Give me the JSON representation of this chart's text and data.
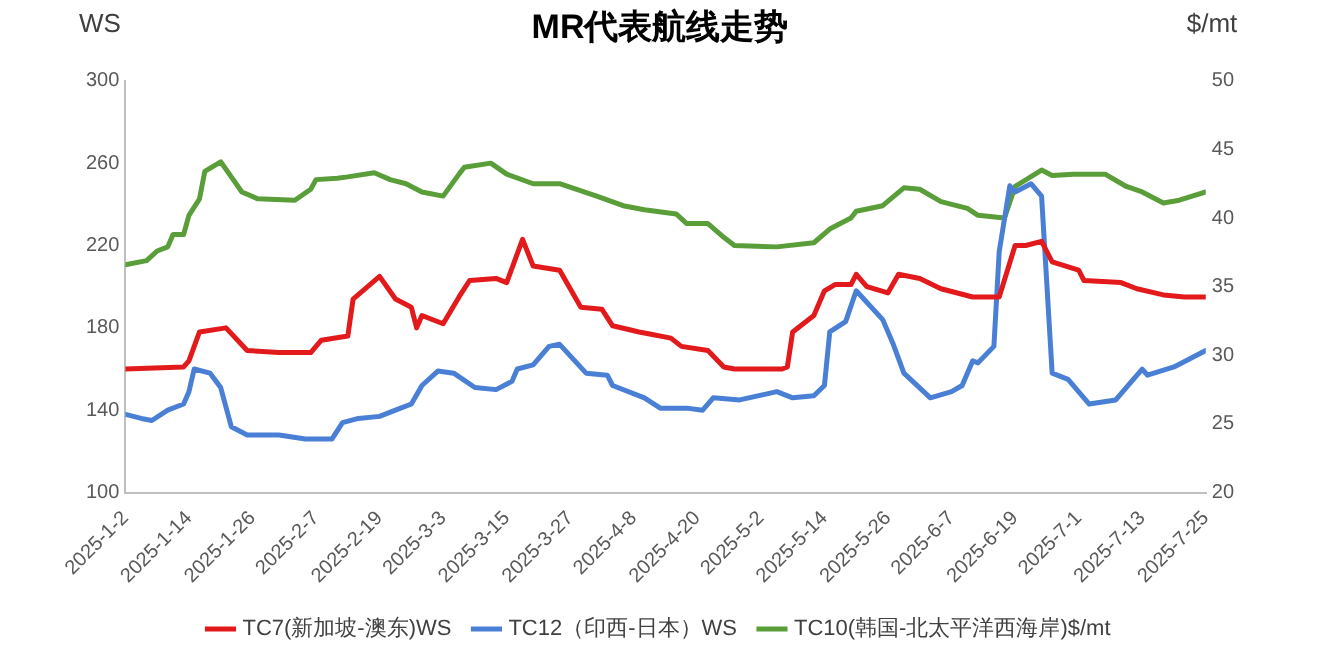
{
  "chart_data": {
    "type": "line",
    "title": "MR代表航线走势",
    "ylabel": "WS",
    "y2label": "$/mt",
    "xlim": [
      "2025-01-02",
      "2025-07-25"
    ],
    "xticks": [
      {
        "value": "2025-01-02",
        "label": "2025-1-2"
      },
      {
        "value": "2025-01-14",
        "label": "2025-1-14"
      },
      {
        "value": "2025-01-26",
        "label": "2025-1-26"
      },
      {
        "value": "2025-02-07",
        "label": "2025-2-7"
      },
      {
        "value": "2025-02-19",
        "label": "2025-2-19"
      },
      {
        "value": "2025-03-03",
        "label": "2025-3-3"
      },
      {
        "value": "2025-03-15",
        "label": "2025-3-15"
      },
      {
        "value": "2025-03-27",
        "label": "2025-3-27"
      },
      {
        "value": "2025-04-08",
        "label": "2025-4-8"
      },
      {
        "value": "2025-04-20",
        "label": "2025-4-20"
      },
      {
        "value": "2025-05-02",
        "label": "2025-5-2"
      },
      {
        "value": "2025-05-14",
        "label": "2025-5-14"
      },
      {
        "value": "2025-05-26",
        "label": "2025-5-26"
      },
      {
        "value": "2025-06-07",
        "label": "2025-6-7"
      },
      {
        "value": "2025-06-19",
        "label": "2025-6-19"
      },
      {
        "value": "2025-07-01",
        "label": "2025-7-1"
      },
      {
        "value": "2025-07-13",
        "label": "2025-7-13"
      },
      {
        "value": "2025-07-25",
        "label": "2025-7-25"
      }
    ],
    "ylim": [
      100,
      300
    ],
    "yticks": [
      100,
      140,
      180,
      220,
      260,
      300
    ],
    "y2lim": [
      20,
      50
    ],
    "y2ticks": [
      20,
      25,
      30,
      35,
      40,
      45,
      50
    ],
    "grid": false,
    "legend": "bottom",
    "marker": "none",
    "line_style": "solid",
    "series": [
      {
        "name": "TC7(新加坡-澳东)WS",
        "color": "#e31a1c",
        "x": [
          "2025-01-02",
          "2025-01-13",
          "2025-01-14",
          "2025-01-16",
          "2025-01-21",
          "2025-01-25",
          "2025-01-31",
          "2025-02-06",
          "2025-02-08",
          "2025-02-13",
          "2025-02-14",
          "2025-02-19",
          "2025-02-22",
          "2025-02-25",
          "2025-02-26",
          "2025-02-27",
          "2025-03-03",
          "2025-03-06",
          "2025-03-08",
          "2025-03-13",
          "2025-03-15",
          "2025-03-18",
          "2025-03-20",
          "2025-03-25",
          "2025-03-29",
          "2025-04-02",
          "2025-04-04",
          "2025-04-09",
          "2025-04-11",
          "2025-04-15",
          "2025-04-17",
          "2025-04-22",
          "2025-04-25",
          "2025-04-27",
          "2025-05-06",
          "2025-05-07",
          "2025-05-08",
          "2025-05-12",
          "2025-05-14",
          "2025-05-16",
          "2025-05-19",
          "2025-05-20",
          "2025-05-22",
          "2025-05-26",
          "2025-05-28",
          "2025-06-01",
          "2025-06-05",
          "2025-06-11",
          "2025-06-16",
          "2025-06-19",
          "2025-06-21",
          "2025-06-24",
          "2025-06-26",
          "2025-07-01",
          "2025-07-02",
          "2025-07-09",
          "2025-07-12",
          "2025-07-17",
          "2025-07-21",
          "2025-07-25"
        ],
        "values": [
          160,
          161,
          164,
          178,
          180,
          169,
          168,
          168,
          174,
          176,
          194,
          205,
          194,
          190,
          180,
          186,
          182,
          195,
          203,
          204,
          202,
          223,
          210,
          208,
          190,
          189,
          181,
          178,
          177,
          175,
          171,
          169,
          161,
          160,
          160,
          161,
          178,
          186,
          198,
          201,
          201,
          206,
          200,
          197,
          206,
          204,
          199,
          195,
          195,
          220,
          220,
          222,
          212,
          208,
          203,
          202,
          199,
          196,
          195,
          195
        ]
      },
      {
        "name": "TC12（印西-日本）WS",
        "color": "#4a7fd6",
        "x": [
          "2025-01-02",
          "2025-01-05",
          "2025-01-07",
          "2025-01-10",
          "2025-01-13",
          "2025-01-14",
          "2025-01-15",
          "2025-01-18",
          "2025-01-20",
          "2025-01-22",
          "2025-01-25",
          "2025-01-31",
          "2025-02-05",
          "2025-02-10",
          "2025-02-12",
          "2025-02-15",
          "2025-02-19",
          "2025-02-22",
          "2025-02-25",
          "2025-02-27",
          "2025-03-02",
          "2025-03-05",
          "2025-03-09",
          "2025-03-13",
          "2025-03-16",
          "2025-03-17",
          "2025-03-20",
          "2025-03-23",
          "2025-03-25",
          "2025-03-30",
          "2025-04-03",
          "2025-04-04",
          "2025-04-10",
          "2025-04-13",
          "2025-04-18",
          "2025-04-21",
          "2025-04-23",
          "2025-04-28",
          "2025-05-05",
          "2025-05-08",
          "2025-05-12",
          "2025-05-14",
          "2025-05-15",
          "2025-05-18",
          "2025-05-20",
          "2025-05-25",
          "2025-05-27",
          "2025-05-29",
          "2025-06-03",
          "2025-06-07",
          "2025-06-09",
          "2025-06-11",
          "2025-06-12",
          "2025-06-15",
          "2025-06-16",
          "2025-06-18",
          "2025-06-19",
          "2025-06-22",
          "2025-06-24",
          "2025-06-26",
          "2025-06-29",
          "2025-07-03",
          "2025-07-08",
          "2025-07-11",
          "2025-07-13",
          "2025-07-14",
          "2025-07-19",
          "2025-07-25"
        ],
        "values": [
          138,
          136,
          135,
          140,
          143,
          149,
          160,
          158,
          151,
          132,
          128,
          128,
          126,
          126,
          134,
          136,
          137,
          140,
          143,
          152,
          159,
          158,
          151,
          150,
          154,
          160,
          162,
          171,
          172,
          158,
          157,
          152,
          146,
          141,
          141,
          140,
          146,
          145,
          149,
          146,
          147,
          152,
          178,
          183,
          198,
          184,
          172,
          158,
          146,
          149,
          152,
          164,
          163,
          171,
          217,
          249,
          246,
          250,
          244,
          158,
          155,
          143,
          145,
          154,
          160,
          157,
          161,
          169
        ]
      },
      {
        "name": "TC10(韩国-北太平洋西海岸)$/mt",
        "color": "#5a9e3a",
        "axis": "y2",
        "x": [
          "2025-01-02",
          "2025-01-06",
          "2025-01-08",
          "2025-01-10",
          "2025-01-11",
          "2025-01-13",
          "2025-01-14",
          "2025-01-16",
          "2025-01-17",
          "2025-01-20",
          "2025-01-22",
          "2025-01-24",
          "2025-01-27",
          "2025-02-03",
          "2025-02-06",
          "2025-02-07",
          "2025-02-11",
          "2025-02-13",
          "2025-02-18",
          "2025-02-21",
          "2025-02-24",
          "2025-02-27",
          "2025-03-03",
          "2025-03-06",
          "2025-03-07",
          "2025-03-12",
          "2025-03-15",
          "2025-03-20",
          "2025-03-25",
          "2025-04-01",
          "2025-04-06",
          "2025-04-10",
          "2025-04-16",
          "2025-04-18",
          "2025-04-22",
          "2025-04-25",
          "2025-04-27",
          "2025-05-05",
          "2025-05-12",
          "2025-05-15",
          "2025-05-19",
          "2025-05-20",
          "2025-05-25",
          "2025-05-29",
          "2025-06-01",
          "2025-06-05",
          "2025-06-10",
          "2025-06-12",
          "2025-06-17",
          "2025-06-19",
          "2025-06-24",
          "2025-06-26",
          "2025-06-30",
          "2025-07-06",
          "2025-07-10",
          "2025-07-13",
          "2025-07-17",
          "2025-07-20",
          "2025-07-25"
        ],
        "values": [
          36.6,
          36.9,
          37.6,
          37.9,
          38.8,
          38.8,
          40.2,
          41.4,
          43.4,
          44.1,
          43.0,
          41.9,
          41.4,
          41.3,
          42.1,
          42.8,
          42.9,
          43.0,
          43.3,
          42.8,
          42.5,
          41.9,
          41.6,
          43.2,
          43.7,
          44.0,
          43.2,
          42.5,
          42.5,
          41.6,
          40.9,
          40.6,
          40.3,
          39.6,
          39.6,
          38.6,
          38.0,
          37.9,
          38.2,
          39.2,
          40.0,
          40.5,
          40.9,
          42.2,
          42.1,
          41.2,
          40.7,
          40.2,
          40.0,
          42.3,
          43.5,
          43.1,
          43.2,
          43.2,
          42.3,
          41.9,
          41.1,
          41.3,
          41.9
        ]
      }
    ]
  }
}
